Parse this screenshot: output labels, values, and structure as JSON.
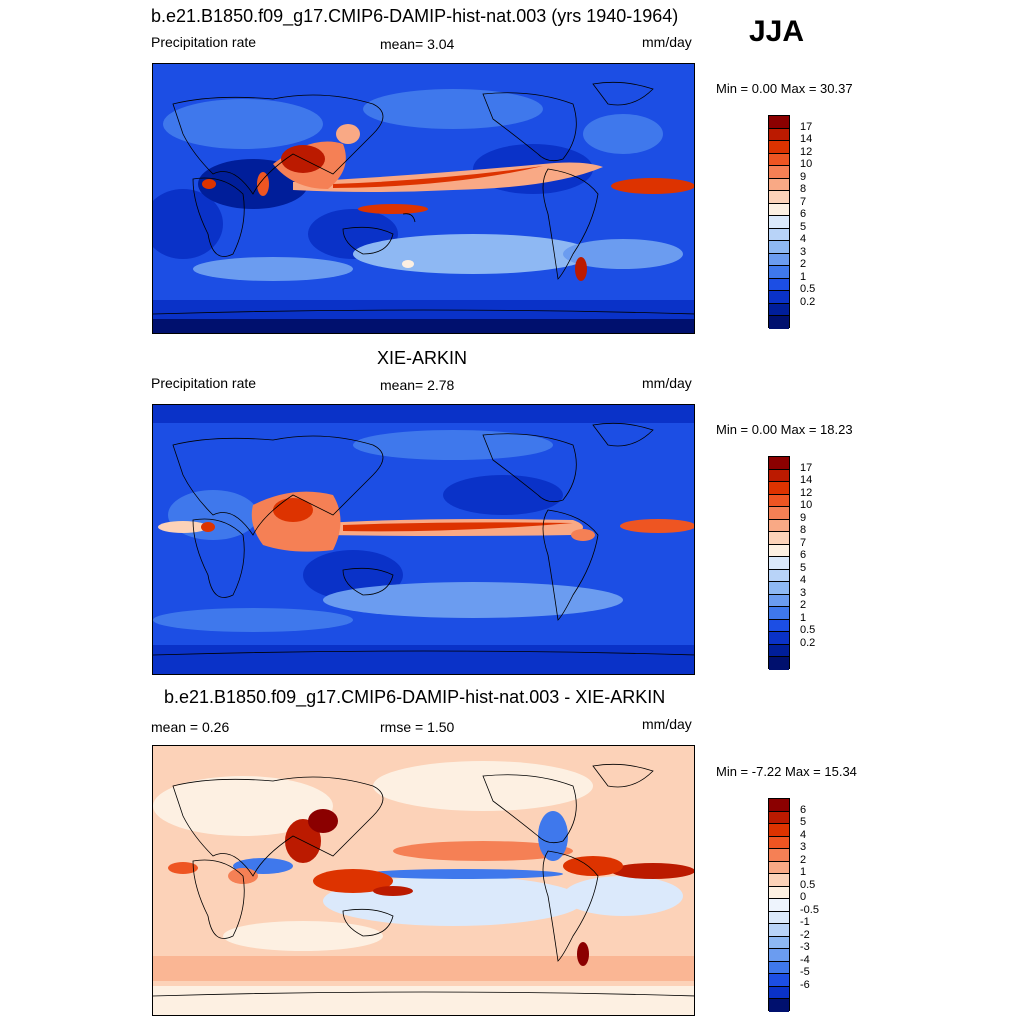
{
  "season": "JJA",
  "panels": [
    {
      "title": "b.e21.B1850.f09_g17.CMIP6-DAMIP-hist-nat.003 (yrs 1940-1964)",
      "left_label": "Precipitation rate",
      "center_label": "mean=   3.04",
      "right_label": "mm/day",
      "minmax": "Min =   0.00 Max =  30.37",
      "colorbar": {
        "colors": [
          "#8b0000",
          "#bb1a00",
          "#dd3300",
          "#ee5522",
          "#f58055",
          "#f9a985",
          "#fcd2b8",
          "#fdf0e2",
          "#dbe9fb",
          "#b8d3f8",
          "#8eb8f3",
          "#6b9cf0",
          "#3f78ec",
          "#1c4ee4",
          "#0a32c8",
          "#001e9a",
          "#00106e"
        ],
        "labels": [
          "17",
          "14",
          "12",
          "10",
          "9",
          "8",
          "7",
          "6",
          "5",
          "4",
          "3",
          "2",
          "1",
          "0.5",
          "0.2"
        ]
      }
    },
    {
      "title": "XIE-ARKIN",
      "left_label": "Precipitation rate",
      "center_label": "mean=   2.78",
      "right_label": "mm/day",
      "minmax": "Min =   0.00 Max =  18.23",
      "colorbar": {
        "colors": [
          "#8b0000",
          "#bb1a00",
          "#dd3300",
          "#ee5522",
          "#f58055",
          "#f9a985",
          "#fcd2b8",
          "#fdf0e2",
          "#dbe9fb",
          "#b8d3f8",
          "#8eb8f3",
          "#6b9cf0",
          "#3f78ec",
          "#1c4ee4",
          "#0a32c8",
          "#001e9a",
          "#00106e"
        ],
        "labels": [
          "17",
          "14",
          "12",
          "10",
          "9",
          "8",
          "7",
          "6",
          "5",
          "4",
          "3",
          "2",
          "1",
          "0.5",
          "0.2"
        ]
      }
    },
    {
      "title": "b.e21.B1850.f09_g17.CMIP6-DAMIP-hist-nat.003 - XIE-ARKIN",
      "left_label": "mean =   0.26",
      "center_label": "rmse =   1.50",
      "right_label": "mm/day",
      "minmax": "Min = -7.22 Max =  15.34",
      "colorbar": {
        "colors": [
          "#8b0000",
          "#bb1a00",
          "#dd3300",
          "#ee5522",
          "#f58055",
          "#f9a985",
          "#fcd2b8",
          "#fdf0e2",
          "#eef4fd",
          "#dbe9fb",
          "#b8d3f8",
          "#8eb8f3",
          "#6b9cf0",
          "#3f78ec",
          "#1c4ee4",
          "#0a32c8",
          "#00106e"
        ],
        "labels": [
          "6",
          "5",
          "4",
          "3",
          "2",
          "1",
          "0.5",
          "0",
          "-0.5",
          "-1",
          "-2",
          "-3",
          "-4",
          "-5",
          "-6"
        ]
      }
    }
  ]
}
